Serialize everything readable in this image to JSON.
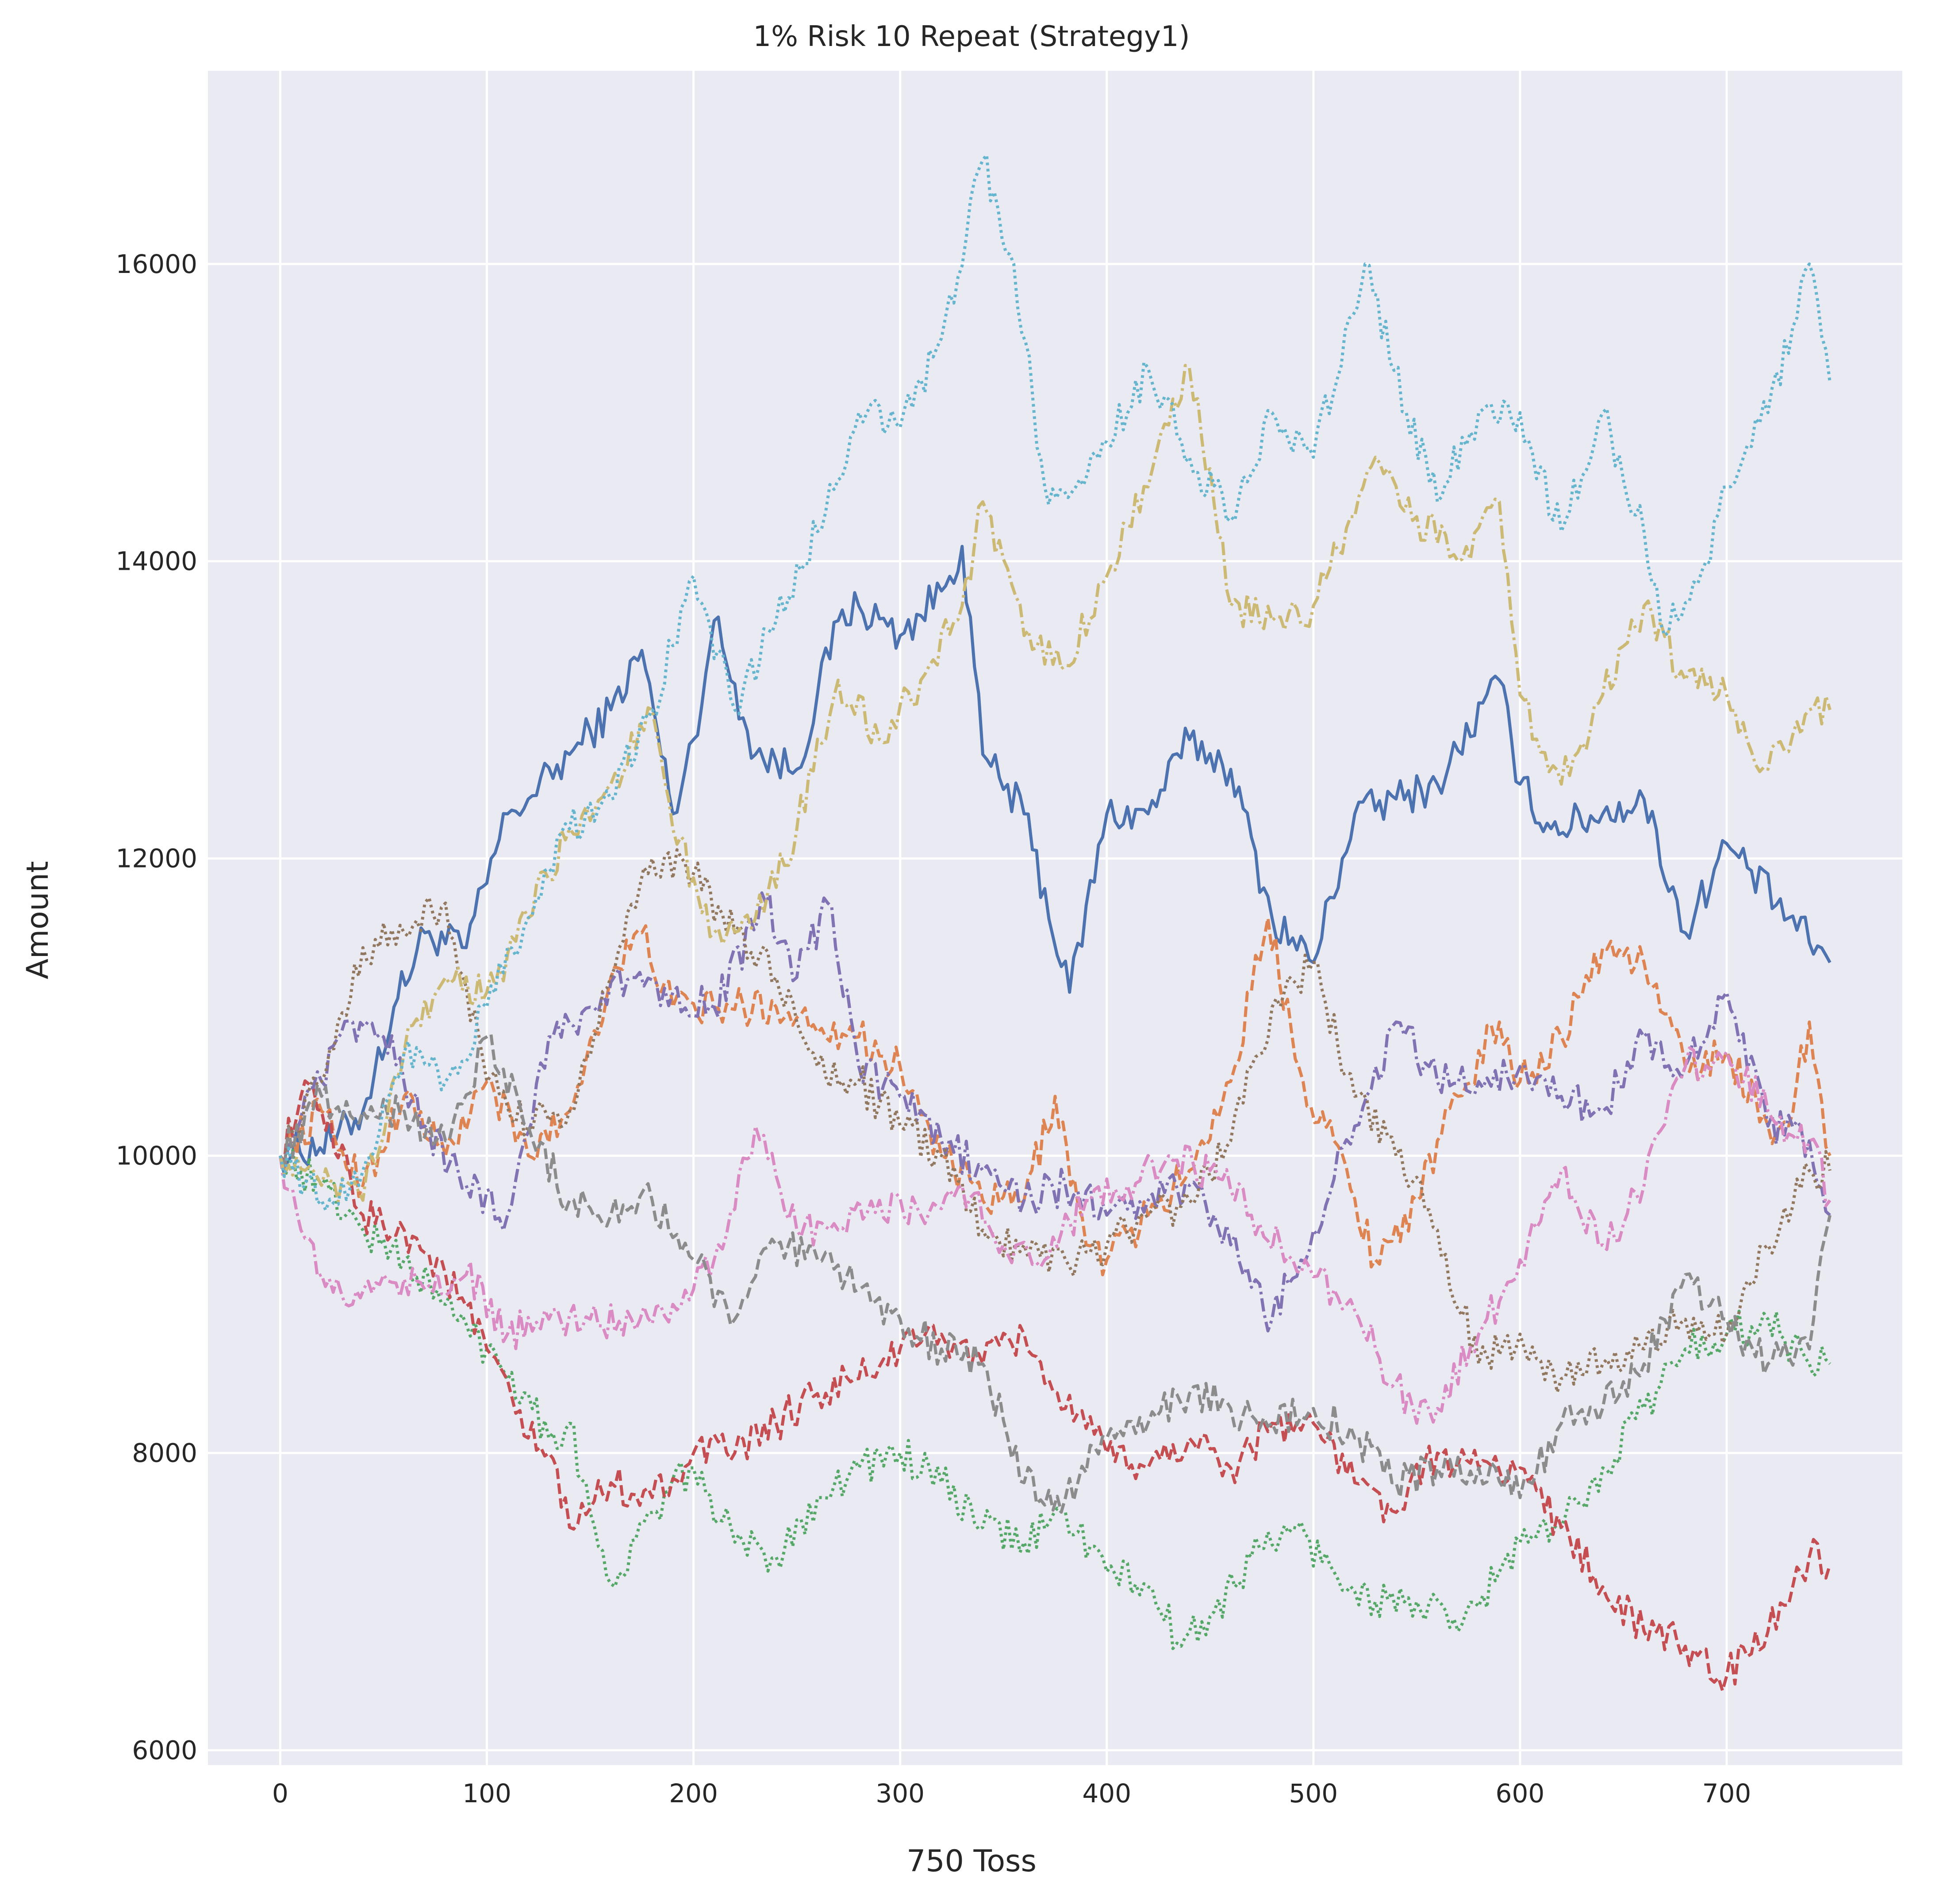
{
  "chart_data": {
    "type": "line",
    "title": "1% Risk 10 Repeat (Strategy1)",
    "xlabel": "750 Toss",
    "ylabel": "Amount",
    "xlim": [
      -35,
      785
    ],
    "ylim": [
      5900,
      17300
    ],
    "x_ticks": [
      0,
      100,
      200,
      300,
      400,
      500,
      600,
      700
    ],
    "y_ticks": [
      6000,
      8000,
      10000,
      12000,
      14000,
      16000
    ],
    "grid": true,
    "legend": "none",
    "background": "#eaeaf2",
    "series": [
      {
        "color": "#4c72b0",
        "dash": "solid",
        "x": [
          0,
          25,
          40,
          55,
          70,
          90,
          110,
          120,
          140,
          160,
          175,
          190,
          200,
          210,
          230,
          250,
          270,
          280,
          300,
          320,
          330,
          340,
          360,
          382,
          400,
          420,
          440,
          460,
          480,
          500,
          520,
          540,
          560,
          590,
          600,
          615,
          640,
          660,
          680,
          700,
          730,
          750
        ],
        "y": [
          10000,
          10100,
          10300,
          11000,
          11500,
          11400,
          12300,
          12400,
          12700,
          13000,
          13400,
          12300,
          12800,
          13600,
          12700,
          12600,
          13600,
          13700,
          13500,
          13800,
          14100,
          12700,
          12300,
          11100,
          12300,
          12300,
          12800,
          12600,
          11600,
          11300,
          12300,
          12400,
          12500,
          13200,
          12500,
          12200,
          12300,
          12400,
          11500,
          12100,
          11600,
          11300
        ]
      },
      {
        "color": "#dd8452",
        "dash": "dashed",
        "x": [
          0,
          20,
          40,
          60,
          80,
          100,
          120,
          140,
          160,
          175,
          190,
          210,
          240,
          280,
          300,
          320,
          340,
          360,
          375,
          390,
          400,
          420,
          440,
          460,
          478,
          495,
          510,
          530,
          550,
          570,
          590,
          600,
          620,
          640,
          660,
          680,
          700,
          720,
          730,
          740,
          750
        ],
        "y": [
          10000,
          10300,
          9800,
          10400,
          10000,
          10500,
          10000,
          10300,
          11200,
          11500,
          11000,
          11000,
          11000,
          10800,
          10600,
          10000,
          9700,
          9700,
          10400,
          9400,
          9300,
          9600,
          9900,
          10500,
          11600,
          10500,
          10100,
          9300,
          9700,
          10400,
          10900,
          10500,
          10800,
          11400,
          11300,
          10600,
          10700,
          10200,
          10200,
          10900,
          10000
        ]
      },
      {
        "color": "#55a868",
        "dash": "dotted",
        "x": [
          0,
          20,
          40,
          60,
          80,
          100,
          120,
          130,
          140,
          150,
          162,
          180,
          200,
          220,
          240,
          260,
          280,
          300,
          320,
          340,
          360,
          380,
          400,
          420,
          436,
          450,
          470,
          490,
          510,
          530,
          550,
          570,
          590,
          600,
          620,
          640,
          660,
          680,
          700,
          720,
          740,
          750
        ],
        "y": [
          10000,
          9800,
          9500,
          9300,
          9000,
          8700,
          8400,
          8100,
          8200,
          7600,
          7100,
          7600,
          7900,
          7400,
          7300,
          7700,
          7900,
          8000,
          7800,
          7500,
          7400,
          7600,
          7200,
          7100,
          6700,
          6900,
          7300,
          7500,
          7200,
          7000,
          7000,
          6800,
          7200,
          7400,
          7500,
          7900,
          8300,
          8700,
          8800,
          8900,
          8600,
          8600
        ]
      },
      {
        "color": "#c44e52",
        "dash": "dashed",
        "x": [
          0,
          10,
          20,
          40,
          60,
          80,
          100,
          120,
          130,
          140,
          160,
          180,
          200,
          220,
          240,
          260,
          280,
          300,
          320,
          340,
          360,
          380,
          400,
          420,
          440,
          460,
          480,
          500,
          520,
          540,
          560,
          580,
          600,
          620,
          640,
          660,
          680,
          700,
          720,
          740,
          750
        ],
        "y": [
          10000,
          10400,
          10300,
          9600,
          9500,
          9200,
          8700,
          8100,
          8000,
          7500,
          7800,
          7700,
          8000,
          8000,
          8200,
          8400,
          8500,
          8700,
          8800,
          8600,
          8800,
          8300,
          8000,
          7900,
          8100,
          7900,
          8200,
          8200,
          7800,
          7600,
          8000,
          7900,
          7900,
          7500,
          7100,
          6800,
          6700,
          6500,
          6800,
          7300,
          7250
        ]
      },
      {
        "color": "#8172b3",
        "dash": "dashdot",
        "x": [
          0,
          20,
          35,
          50,
          70,
          90,
          110,
          130,
          150,
          170,
          190,
          210,
          235,
          250,
          265,
          280,
          300,
          320,
          340,
          360,
          380,
          400,
          420,
          440,
          460,
          480,
          500,
          520,
          540,
          560,
          580,
          600,
          620,
          640,
          660,
          680,
          700,
          720,
          740,
          750
        ],
        "y": [
          10000,
          10500,
          10900,
          10800,
          10200,
          9800,
          9600,
          10800,
          11000,
          11200,
          11100,
          11000,
          11700,
          11200,
          11700,
          10600,
          10400,
          10100,
          9900,
          9700,
          9800,
          9600,
          9700,
          9800,
          9400,
          8900,
          9500,
          10200,
          10900,
          10500,
          10500,
          10600,
          10400,
          10300,
          10800,
          10600,
          11100,
          10200,
          10100,
          9600
        ]
      },
      {
        "color": "#937860",
        "dash": "dotted",
        "x": [
          0,
          20,
          40,
          60,
          80,
          100,
          120,
          140,
          160,
          180,
          200,
          220,
          240,
          260,
          280,
          300,
          320,
          340,
          360,
          380,
          400,
          420,
          440,
          460,
          480,
          500,
          520,
          540,
          560,
          580,
          600,
          620,
          640,
          660,
          680,
          700,
          720,
          740,
          750
        ],
        "y": [
          10000,
          10500,
          11400,
          11500,
          11700,
          10500,
          10200,
          10300,
          11200,
          12000,
          11900,
          11500,
          11200,
          10600,
          10500,
          10200,
          10000,
          9500,
          9400,
          9300,
          9400,
          9600,
          9700,
          10100,
          11000,
          11300,
          10400,
          10000,
          9500,
          8600,
          8800,
          8500,
          8600,
          8700,
          8900,
          8800,
          9400,
          9900,
          9900
        ]
      },
      {
        "color": "#da8bc3",
        "dash": "dashdot",
        "x": [
          0,
          10,
          20,
          35,
          50,
          70,
          90,
          110,
          130,
          150,
          170,
          190,
          210,
          230,
          250,
          270,
          290,
          310,
          330,
          350,
          370,
          390,
          410,
          430,
          450,
          470,
          490,
          510,
          530,
          550,
          560,
          580,
          600,
          620,
          640,
          660,
          680,
          700,
          720,
          740,
          750
        ],
        "y": [
          10000,
          9500,
          9200,
          9000,
          9200,
          9100,
          9200,
          8800,
          8900,
          8900,
          8900,
          9000,
          9300,
          10200,
          9500,
          9500,
          9700,
          9600,
          9800,
          9400,
          9300,
          9700,
          9800,
          10000,
          9900,
          9600,
          9300,
          9100,
          8700,
          8200,
          8300,
          8800,
          9300,
          9900,
          9400,
          9800,
          10600,
          10700,
          10300,
          10100,
          9700
        ]
      },
      {
        "color": "#8c8c8c",
        "dash": "dashed",
        "x": [
          0,
          20,
          40,
          60,
          80,
          100,
          120,
          140,
          160,
          180,
          200,
          220,
          240,
          260,
          280,
          300,
          320,
          340,
          360,
          380,
          400,
          420,
          440,
          460,
          480,
          500,
          520,
          540,
          560,
          580,
          600,
          620,
          640,
          660,
          680,
          700,
          720,
          740,
          750
        ],
        "y": [
          10000,
          10400,
          10300,
          10300,
          10100,
          10800,
          10200,
          9700,
          9600,
          9700,
          9300,
          8900,
          9400,
          9300,
          9100,
          8900,
          8700,
          8600,
          7800,
          7700,
          8100,
          8200,
          8400,
          8300,
          8200,
          8300,
          8100,
          7800,
          7900,
          7900,
          7700,
          8200,
          8300,
          8600,
          9200,
          8900,
          8600,
          8700,
          9600
        ]
      },
      {
        "color": "#ccb974",
        "dash": "dashdot",
        "x": [
          0,
          20,
          40,
          60,
          80,
          100,
          120,
          140,
          160,
          180,
          190,
          210,
          230,
          250,
          270,
          290,
          310,
          330,
          340,
          360,
          380,
          400,
          420,
          440,
          460,
          480,
          500,
          520,
          530,
          550,
          570,
          590,
          600,
          620,
          640,
          660,
          680,
          700,
          720,
          740,
          750
        ],
        "y": [
          10000,
          9800,
          9700,
          10700,
          11200,
          11100,
          11600,
          12200,
          12500,
          13000,
          12200,
          11500,
          11600,
          12200,
          13200,
          12800,
          13200,
          13700,
          14400,
          13500,
          13300,
          13900,
          14500,
          15300,
          13700,
          13600,
          13700,
          14300,
          14700,
          14300,
          14000,
          14400,
          13100,
          12500,
          13100,
          13700,
          13200,
          13100,
          12600,
          13000,
          13000
        ]
      },
      {
        "color": "#64b5cd",
        "dash": "dotted",
        "x": [
          0,
          20,
          40,
          60,
          80,
          100,
          120,
          140,
          160,
          180,
          200,
          220,
          240,
          260,
          280,
          300,
          320,
          340,
          355,
          370,
          385,
          400,
          420,
          440,
          460,
          480,
          500,
          525,
          545,
          560,
          580,
          600,
          620,
          640,
          660,
          670,
          690,
          700,
          720,
          740,
          750
        ],
        "y": [
          10000,
          9700,
          9900,
          10700,
          10500,
          11000,
          11600,
          12200,
          12400,
          13000,
          13900,
          13000,
          13600,
          14200,
          15000,
          14900,
          15500,
          16700,
          16000,
          14500,
          14500,
          14800,
          15300,
          14700,
          14300,
          15000,
          14700,
          16000,
          15000,
          14400,
          15000,
          15000,
          14200,
          15000,
          14200,
          13500,
          14000,
          14500,
          15000,
          16000,
          15200
        ]
      }
    ]
  }
}
